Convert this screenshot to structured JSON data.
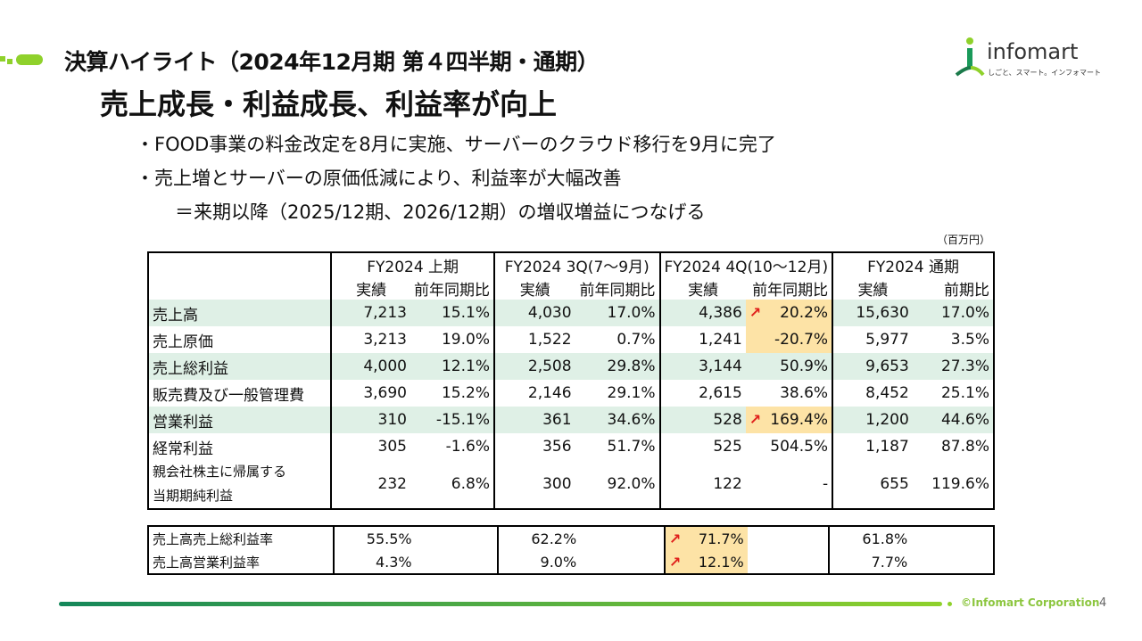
{
  "header": {
    "title": "決算ハイライト（2024年12月期 第４四半期・通期）",
    "headline": "売上成長・利益成長、利益率が向上",
    "bullets": [
      "・FOOD事業の料金改定を8月に実施、サーバーのクラウド移行を9月に完了",
      "・売上増とサーバーの原価低減により、利益率が大幅改善",
      "＝来期以降（2025/12期、2026/12期）の増収増益につなげる"
    ]
  },
  "logo": {
    "name": "infomart",
    "tagline": "しごと、スマート。インフォマート"
  },
  "unit": "（百万円）",
  "table": {
    "periods": [
      "FY2024 上期",
      "FY2024 3Q(7〜9月)",
      "FY2024 4Q(10〜12月)",
      "FY2024 通期"
    ],
    "subheaders": [
      "実績",
      "前年同期比",
      "実績",
      "前年同期比",
      "実績",
      "前年同期比",
      "実績",
      "前期比"
    ],
    "rows": [
      {
        "label": "売上高",
        "values": [
          "7,213",
          "15.1%",
          "4,030",
          "17.0%",
          "4,386",
          "20.2%",
          "15,630",
          "17.0%"
        ],
        "green": true,
        "hl": [
          5
        ],
        "arrow": [
          5
        ]
      },
      {
        "label": "売上原価",
        "values": [
          "3,213",
          "19.0%",
          "1,522",
          "0.7%",
          "1,241",
          "-20.7%",
          "5,977",
          "3.5%"
        ],
        "green": false,
        "hl": [
          5
        ],
        "arrow": []
      },
      {
        "label": "売上総利益",
        "values": [
          "4,000",
          "12.1%",
          "2,508",
          "29.8%",
          "3,144",
          "50.9%",
          "9,653",
          "27.3%"
        ],
        "green": true,
        "hl": [],
        "arrow": []
      },
      {
        "label": "販売費及び一般管理費",
        "values": [
          "3,690",
          "15.2%",
          "2,146",
          "29.1%",
          "2,615",
          "38.6%",
          "8,452",
          "25.1%"
        ],
        "green": false,
        "hl": [],
        "arrow": []
      },
      {
        "label": "営業利益",
        "values": [
          "310",
          "-15.1%",
          "361",
          "34.6%",
          "528",
          "169.4%",
          "1,200",
          "44.6%"
        ],
        "green": true,
        "hl": [
          5
        ],
        "arrow": [
          5
        ]
      },
      {
        "label": "経常利益",
        "values": [
          "305",
          "-1.6%",
          "356",
          "51.7%",
          "525",
          "504.5%",
          "1,187",
          "87.8%"
        ],
        "green": false,
        "hl": [],
        "arrow": []
      },
      {
        "label": "親会社株主に帰属する\n当期期純利益",
        "values": [
          "232",
          "6.8%",
          "300",
          "92.0%",
          "122",
          "-",
          "655",
          "119.6%"
        ],
        "green": false,
        "hl": [],
        "arrow": []
      }
    ]
  },
  "ratios": [
    {
      "label": "売上高売上総利益率",
      "values": [
        "55.5%",
        "62.2%",
        "71.7%",
        "61.8%"
      ]
    },
    {
      "label": "売上高営業利益率",
      "values": [
        "4.3%",
        "9.0%",
        "12.1%",
        "7.7%"
      ]
    }
  ],
  "footer": {
    "copyright": "©Infomart Corporation",
    "page": "4"
  },
  "colors": {
    "green_row": "#dff0e6",
    "highlight": "#fde3a6",
    "arrow": "#e0201c"
  }
}
